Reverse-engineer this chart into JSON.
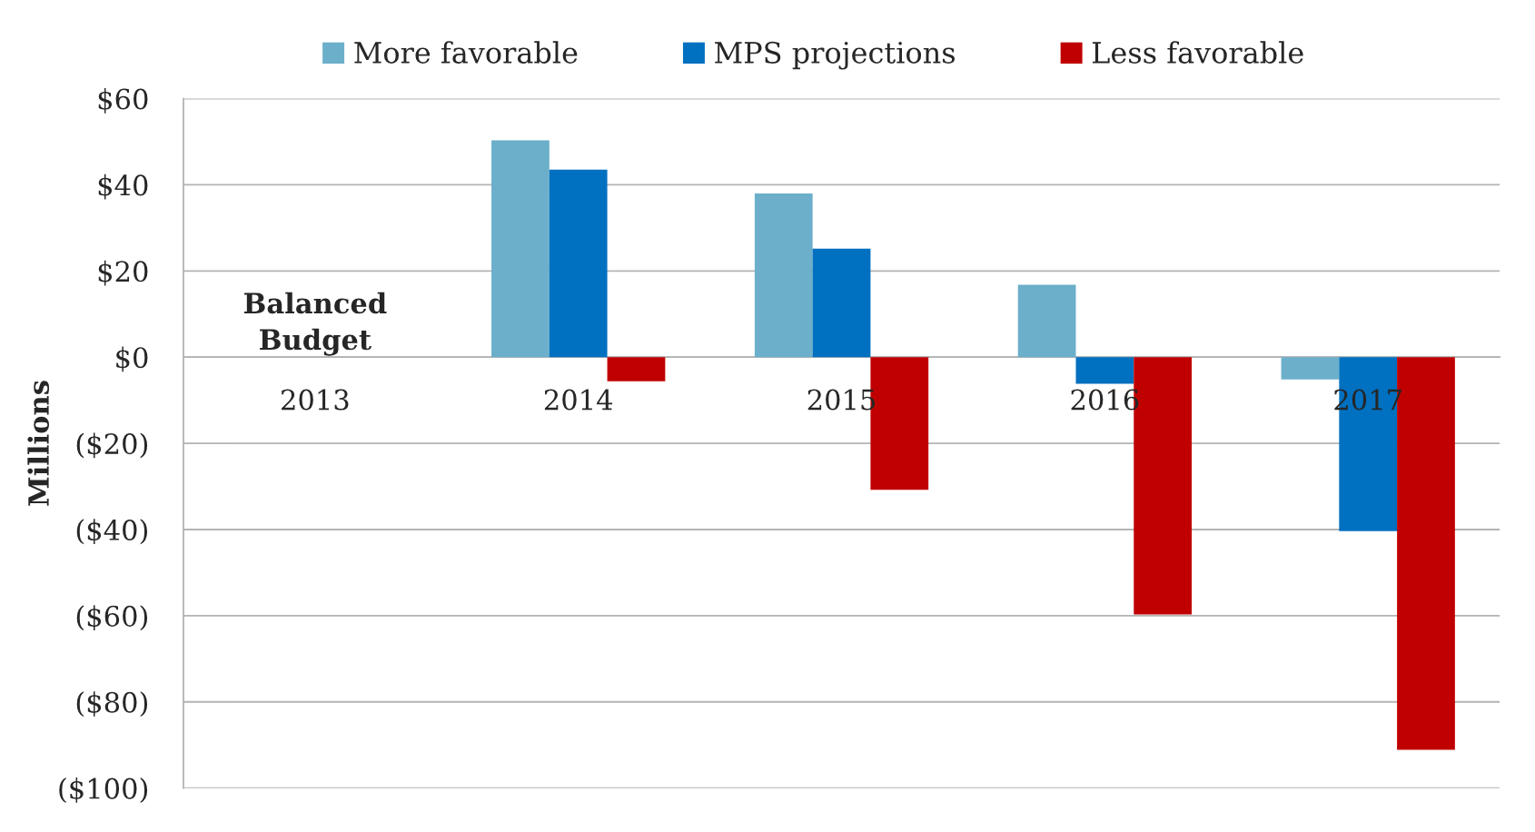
{
  "chart_data": {
    "type": "bar",
    "categories": [
      "2013",
      "2014",
      "2015",
      "2016",
      "2017"
    ],
    "series": [
      {
        "name": "More favorable",
        "color": "#6bafca",
        "values": [
          null,
          50.3,
          38.0,
          16.8,
          -5.2
        ]
      },
      {
        "name": "MPS projections",
        "color": "#0070c0",
        "values": [
          null,
          43.5,
          25.2,
          -6.2,
          -40.4
        ]
      },
      {
        "name": "Less favorable",
        "color": "#c00000",
        "values": [
          null,
          -5.6,
          -30.8,
          -59.7,
          -91.1
        ]
      }
    ],
    "ylabel": "Millions",
    "ylim": [
      -100,
      60
    ],
    "yticks": [
      {
        "value": -100,
        "label": "($100)"
      },
      {
        "value": -80,
        "label": "($80)"
      },
      {
        "value": -60,
        "label": "($60)"
      },
      {
        "value": -40,
        "label": "($40)"
      },
      {
        "value": -20,
        "label": "($20)"
      },
      {
        "value": 0,
        "label": "$0"
      },
      {
        "value": 20,
        "label": "$20"
      },
      {
        "value": 40,
        "label": "$40"
      },
      {
        "value": 60,
        "label": "$60"
      }
    ],
    "annotations": [
      "Balanced\nBudget"
    ],
    "grid": "y",
    "legend": "top"
  }
}
